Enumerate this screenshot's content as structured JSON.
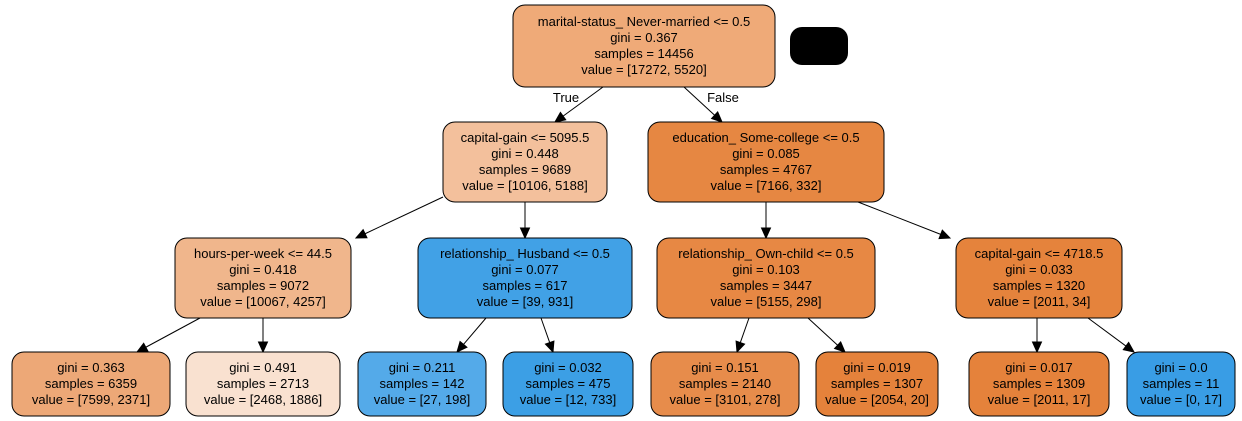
{
  "nodes": [
    {
      "id": "n0",
      "lines": [
        "marital-status_ Never-married <= 0.5",
        "gini = 0.367",
        "samples = 14456",
        "value = [17272, 5520]"
      ],
      "fill": "#efaa78"
    },
    {
      "id": "n1",
      "lines": [
        "capital-gain <= 5095.5",
        "gini = 0.448",
        "samples = 9689",
        "value = [10106, 5188]"
      ],
      "fill": "#f3c09c"
    },
    {
      "id": "n2",
      "lines": [
        "education_ Some-college <= 0.5",
        "gini = 0.085",
        "samples = 4767",
        "value = [7166, 332]"
      ],
      "fill": "#e68742"
    },
    {
      "id": "n3",
      "lines": [
        "hours-per-week <= 44.5",
        "gini = 0.418",
        "samples = 9072",
        "value = [10067, 4257]"
      ],
      "fill": "#f0b68c"
    },
    {
      "id": "n4",
      "lines": [
        "relationship_ Husband <= 0.5",
        "gini = 0.077",
        "samples = 617",
        "value = [39, 931]"
      ],
      "fill": "#41a1e6"
    },
    {
      "id": "n5",
      "lines": [
        "relationship_ Own-child <= 0.5",
        "gini = 0.103",
        "samples = 3447",
        "value = [5155, 298]"
      ],
      "fill": "#e78844"
    },
    {
      "id": "n6",
      "lines": [
        "capital-gain <= 4718.5",
        "gini = 0.033",
        "samples = 1320",
        "value = [2011, 34]"
      ],
      "fill": "#e5833c"
    },
    {
      "id": "n7",
      "lines": [
        "gini = 0.363",
        "samples = 6359",
        "value = [7599, 2371]"
      ],
      "fill": "#eda877"
    },
    {
      "id": "n8",
      "lines": [
        "gini = 0.491",
        "samples = 2713",
        "value = [2468, 1886]"
      ],
      "fill": "#f9e1d0"
    },
    {
      "id": "n9",
      "lines": [
        "gini = 0.211",
        "samples = 142",
        "value = [27, 198]"
      ],
      "fill": "#54aae9"
    },
    {
      "id": "n10",
      "lines": [
        "gini = 0.032",
        "samples = 475",
        "value = [12, 733]"
      ],
      "fill": "#3c9fe5"
    },
    {
      "id": "n11",
      "lines": [
        "gini = 0.151",
        "samples = 2140",
        "value = [3101, 278]"
      ],
      "fill": "#e78c4b"
    },
    {
      "id": "n12",
      "lines": [
        "gini = 0.019",
        "samples = 1307",
        "value = [2054, 20]"
      ],
      "fill": "#e5823b"
    },
    {
      "id": "n13",
      "lines": [
        "gini = 0.017",
        "samples = 1309",
        "value = [2011, 17]"
      ],
      "fill": "#e5823b"
    },
    {
      "id": "n14",
      "lines": [
        "gini = 0.0",
        "samples = 11",
        "value = [0, 17]"
      ],
      "fill": "#399de5"
    }
  ],
  "edges": [
    {
      "from": "n0",
      "to": "n1",
      "label": "True"
    },
    {
      "from": "n0",
      "to": "n2",
      "label": "False"
    },
    {
      "from": "n1",
      "to": "n3",
      "label": ""
    },
    {
      "from": "n1",
      "to": "n4",
      "label": ""
    },
    {
      "from": "n2",
      "to": "n5",
      "label": ""
    },
    {
      "from": "n2",
      "to": "n6",
      "label": ""
    },
    {
      "from": "n3",
      "to": "n7",
      "label": ""
    },
    {
      "from": "n3",
      "to": "n8",
      "label": ""
    },
    {
      "from": "n4",
      "to": "n9",
      "label": ""
    },
    {
      "from": "n4",
      "to": "n10",
      "label": ""
    },
    {
      "from": "n5",
      "to": "n11",
      "label": ""
    },
    {
      "from": "n5",
      "to": "n12",
      "label": ""
    },
    {
      "from": "n6",
      "to": "n13",
      "label": ""
    },
    {
      "from": "n6",
      "to": "n14",
      "label": ""
    }
  ],
  "colors": {
    "stroke": "#000000",
    "redacted_block": "#000000",
    "background": "#ffffff"
  }
}
